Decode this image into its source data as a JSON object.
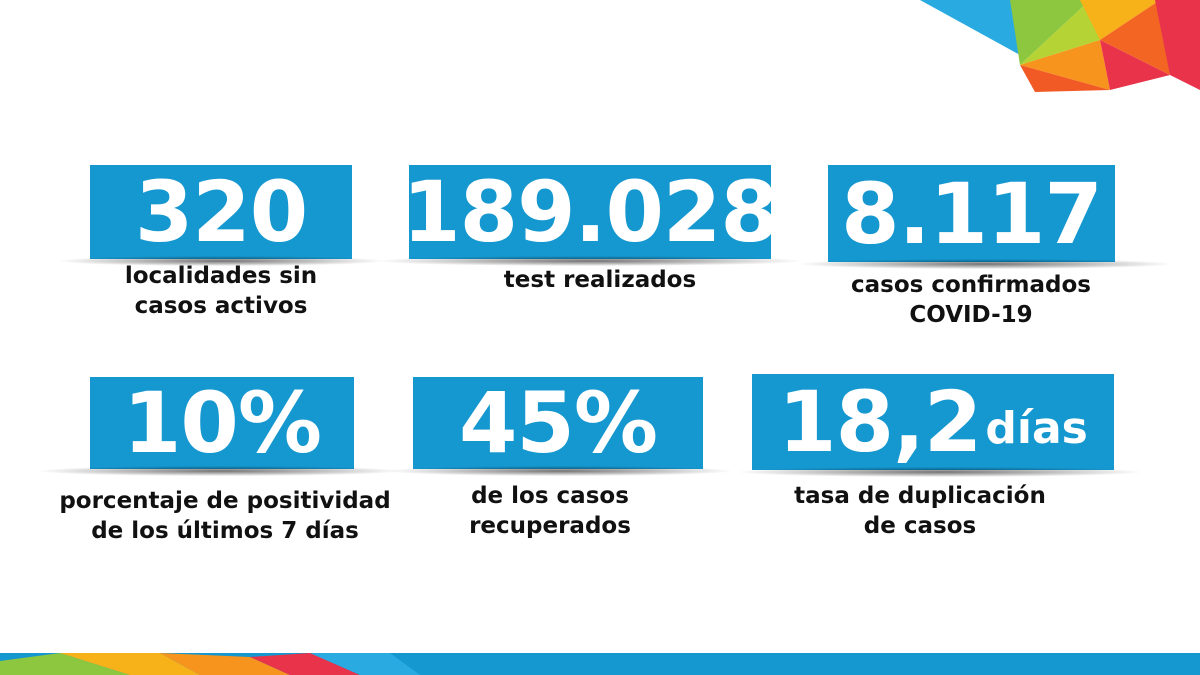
{
  "stats": [
    {
      "value": "320",
      "unit": "",
      "label_line1": "localidades sin",
      "label_line2": "casos activos"
    },
    {
      "value": "189.028",
      "unit": "",
      "label_line1": "test realizados",
      "label_line2": ""
    },
    {
      "value": "8.117",
      "unit": "",
      "label_line1": "casos confirmados",
      "label_line2": "COVID-19"
    },
    {
      "value": "10%",
      "unit": "",
      "label_line1": "porcentaje de positividad",
      "label_line2": "de los últimos 7 días"
    },
    {
      "value": "45%",
      "unit": "",
      "label_line1": "de los casos",
      "label_line2": "recuperados"
    },
    {
      "value": "18,2",
      "unit": "días",
      "label_line1": "tasa de duplicación",
      "label_line2": "de casos"
    }
  ],
  "colors": {
    "box": "#1597cf",
    "text": "#111111",
    "accent_green": "#8dc63f",
    "accent_yellow": "#f7b21a",
    "accent_orange": "#f15a24",
    "accent_red": "#e8334a",
    "accent_blue": "#1597cf"
  }
}
